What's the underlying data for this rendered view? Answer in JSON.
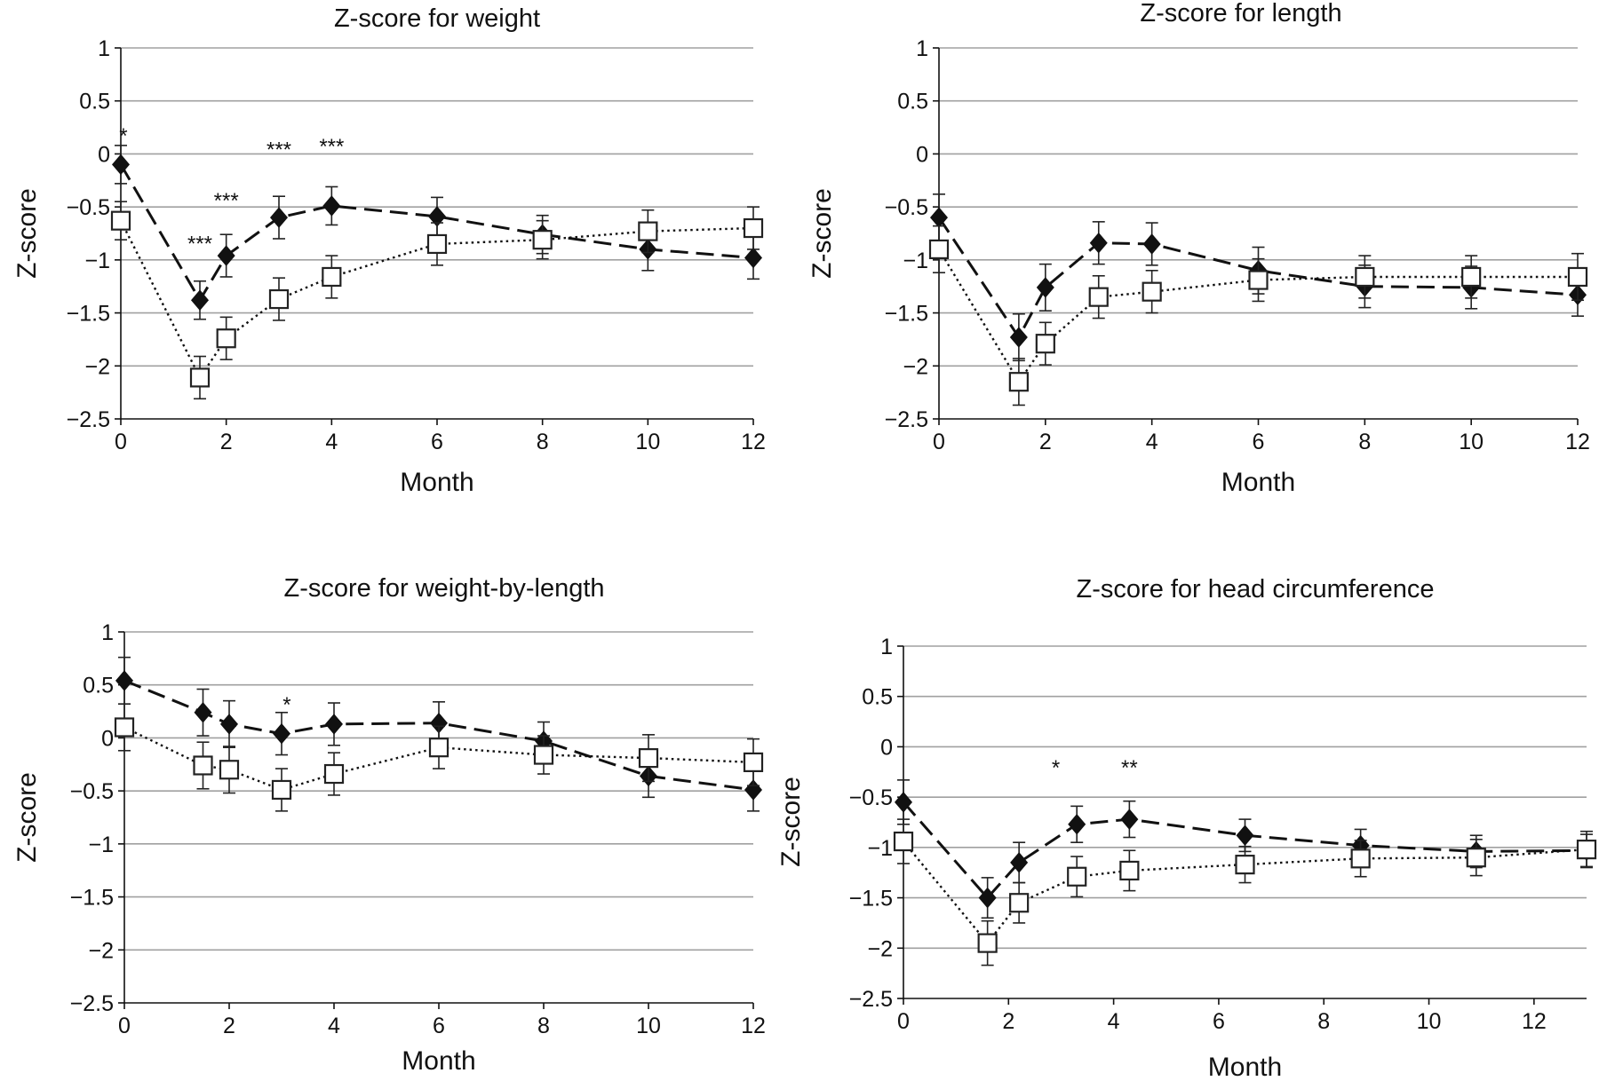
{
  "chart_data": [
    {
      "type": "line",
      "title": "Z-score for weight",
      "xlabel": "Month",
      "ylabel": "Z-score",
      "xlim": [
        0,
        12
      ],
      "ylim": [
        -2.5,
        1
      ],
      "xticks": [
        "0",
        "2",
        "4",
        "6",
        "8",
        "10",
        "12"
      ],
      "yticks": [
        "1",
        "0.5",
        "0",
        "−0.5",
        "−1",
        "−1.5",
        "−2",
        "−2.5"
      ],
      "grid": true,
      "series": [
        {
          "marker": "filled-diamond",
          "line": "dashed",
          "x": [
            0,
            1.5,
            2,
            3,
            4,
            6,
            8,
            10,
            12
          ],
          "y": [
            -0.1,
            -1.38,
            -0.96,
            -0.6,
            -0.49,
            -0.59,
            -0.76,
            -0.9,
            -0.98
          ],
          "error": [
            0.18,
            0.18,
            0.2,
            0.2,
            0.18,
            0.18,
            0.18,
            0.2,
            0.2
          ]
        },
        {
          "marker": "open-square",
          "line": "dotted",
          "x": [
            0,
            1.5,
            2,
            3,
            4,
            6,
            8,
            10,
            12
          ],
          "y": [
            -0.63,
            -2.11,
            -1.74,
            -1.37,
            -1.16,
            -0.85,
            -0.81,
            -0.73,
            -0.7
          ],
          "error": [
            0.18,
            0.2,
            0.2,
            0.2,
            0.2,
            0.2,
            0.18,
            0.2,
            0.2
          ]
        }
      ],
      "annotations": [
        {
          "text": "*",
          "x": 0.05,
          "y": 0.18
        },
        {
          "text": "***",
          "x": 1.5,
          "y": -0.84
        },
        {
          "text": "***",
          "x": 2,
          "y": -0.43
        },
        {
          "text": "***",
          "x": 3,
          "y": 0.05
        },
        {
          "text": "***",
          "x": 4,
          "y": 0.08
        }
      ]
    },
    {
      "type": "line",
      "title": "Z-score for length",
      "xlabel": "Month",
      "ylabel": "Z-score",
      "xlim": [
        0,
        12
      ],
      "ylim": [
        -2.5,
        1
      ],
      "xticks": [
        "0",
        "2",
        "4",
        "6",
        "8",
        "10",
        "12"
      ],
      "yticks": [
        "1",
        "0.5",
        "0",
        "−0.5",
        "−1",
        "−1.5",
        "−2",
        "−2.5"
      ],
      "grid": true,
      "series": [
        {
          "marker": "filled-diamond",
          "line": "dashed",
          "x": [
            0,
            1.5,
            2,
            3,
            4,
            6,
            8,
            10,
            12
          ],
          "y": [
            -0.6,
            -1.73,
            -1.26,
            -0.84,
            -0.85,
            -1.1,
            -1.25,
            -1.26,
            -1.33
          ],
          "error": [
            0.22,
            0.22,
            0.22,
            0.2,
            0.2,
            0.22,
            0.2,
            0.2,
            0.2
          ]
        },
        {
          "marker": "open-square",
          "line": "dotted",
          "x": [
            0,
            1.5,
            2,
            3,
            4,
            6,
            8,
            10,
            12
          ],
          "y": [
            -0.9,
            -2.15,
            -1.79,
            -1.35,
            -1.3,
            -1.19,
            -1.16,
            -1.16,
            -1.16
          ],
          "error": [
            0.22,
            0.22,
            0.2,
            0.2,
            0.2,
            0.2,
            0.2,
            0.2,
            0.22
          ]
        }
      ],
      "annotations": []
    },
    {
      "type": "line",
      "title": "Z-score for weight-by-length",
      "xlabel": "Month",
      "ylabel": "Z-score",
      "xlim": [
        0,
        12
      ],
      "ylim": [
        -2.5,
        1
      ],
      "xticks": [
        "0",
        "2",
        "4",
        "6",
        "8",
        "10",
        "12"
      ],
      "yticks": [
        "1",
        "0.5",
        "0",
        "−0.5",
        "−1",
        "−1.5",
        "−2",
        "−2.5"
      ],
      "grid": true,
      "series": [
        {
          "marker": "filled-diamond",
          "line": "dashed",
          "x": [
            0,
            1.5,
            2,
            3,
            4,
            6,
            8,
            10,
            12
          ],
          "y": [
            0.54,
            0.24,
            0.13,
            0.04,
            0.13,
            0.14,
            -0.03,
            -0.36,
            -0.49
          ],
          "error": [
            0.22,
            0.22,
            0.22,
            0.2,
            0.2,
            0.2,
            0.18,
            0.2,
            0.2
          ]
        },
        {
          "marker": "open-square",
          "line": "dotted",
          "x": [
            0,
            1.5,
            2,
            3,
            4,
            6,
            8,
            10,
            12
          ],
          "y": [
            0.1,
            -0.26,
            -0.3,
            -0.49,
            -0.34,
            -0.09,
            -0.16,
            -0.19,
            -0.23
          ],
          "error": [
            0.22,
            0.22,
            0.22,
            0.2,
            0.2,
            0.2,
            0.18,
            0.22,
            0.22
          ]
        }
      ],
      "annotations": [
        {
          "text": "*",
          "x": 3.1,
          "y": 0.32
        }
      ]
    },
    {
      "type": "line",
      "title": "Z-score for head circumference",
      "xlabel": "Month",
      "ylabel": "Z-score",
      "xlim": [
        0,
        13
      ],
      "ylim": [
        -2.5,
        1
      ],
      "xticks": [
        "0",
        "2",
        "4",
        "6",
        "8",
        "10",
        "12"
      ],
      "yticks": [
        "1",
        "0.5",
        "0",
        "−0.5",
        "−1",
        "−1.5",
        "−2",
        "−2.5"
      ],
      "grid": true,
      "series": [
        {
          "marker": "filled-diamond",
          "line": "dashed",
          "x": [
            0,
            1.6,
            2.2,
            3.3,
            4.3,
            6.5,
            8.7,
            10.9,
            13
          ],
          "y": [
            -0.55,
            -1.5,
            -1.15,
            -0.77,
            -0.72,
            -0.88,
            -0.98,
            -1.04,
            -1.03
          ],
          "error": [
            0.22,
            0.2,
            0.2,
            0.18,
            0.18,
            0.16,
            0.16,
            0.16,
            0.16
          ]
        },
        {
          "marker": "open-square",
          "line": "dotted",
          "x": [
            0,
            1.6,
            2.2,
            3.3,
            4.3,
            6.5,
            8.7,
            10.9,
            13
          ],
          "y": [
            -0.94,
            -1.95,
            -1.55,
            -1.29,
            -1.23,
            -1.17,
            -1.11,
            -1.1,
            -1.02
          ],
          "error": [
            0.22,
            0.22,
            0.2,
            0.2,
            0.2,
            0.18,
            0.18,
            0.18,
            0.18
          ]
        }
      ],
      "annotations": [
        {
          "text": "*",
          "x": 2.9,
          "y": -0.2
        },
        {
          "text": "**",
          "x": 4.3,
          "y": -0.2
        }
      ]
    }
  ]
}
